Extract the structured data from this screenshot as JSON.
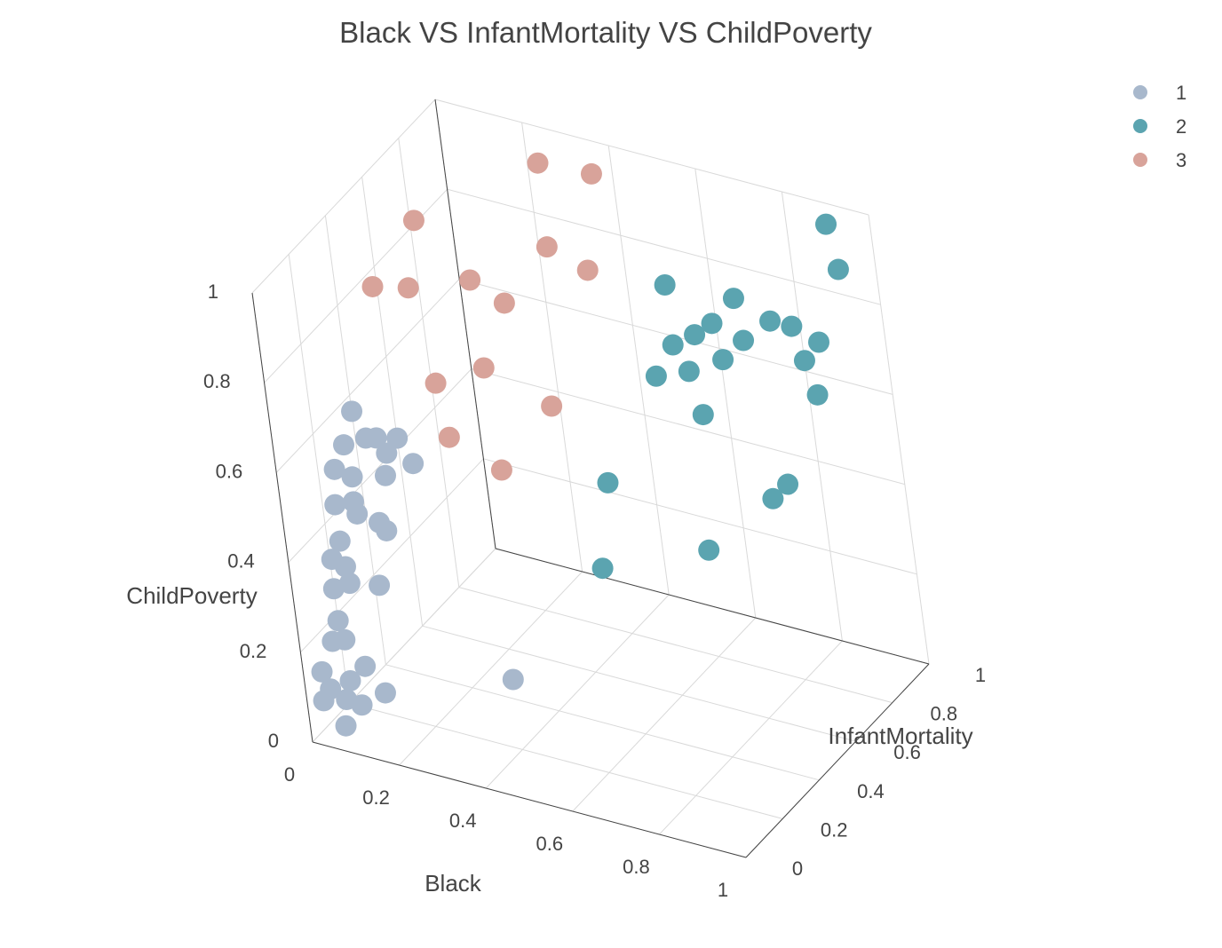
{
  "chart_data": {
    "type": "scatter",
    "title": "Black VS InfantMortality VS ChildPoverty",
    "xlabel": "Black",
    "ylabel": "InfantMortality",
    "zlabel": "ChildPoverty",
    "xlim": [
      0,
      1
    ],
    "ylim": [
      0,
      1
    ],
    "zlim": [
      0,
      1
    ],
    "x_ticks": [
      "0",
      "0.2",
      "0.4",
      "0.6",
      "0.8",
      "1"
    ],
    "y_ticks": [
      "0",
      "0.2",
      "0.4",
      "0.6",
      "0.8",
      "1"
    ],
    "z_ticks": [
      "0",
      "0.2",
      "0.4",
      "0.6",
      "0.8",
      "1"
    ],
    "grid": true,
    "legend_position": "top-right",
    "series": [
      {
        "name": "1",
        "color": "#a8b8cc",
        "points": [
          {
            "x": 0.05,
            "y": 0.3,
            "z": 0.62
          },
          {
            "x": 0.04,
            "y": 0.26,
            "z": 0.56
          },
          {
            "x": 0.03,
            "y": 0.22,
            "z": 0.52
          },
          {
            "x": 0.06,
            "y": 0.33,
            "z": 0.55
          },
          {
            "x": 0.07,
            "y": 0.36,
            "z": 0.54
          },
          {
            "x": 0.08,
            "y": 0.38,
            "z": 0.5
          },
          {
            "x": 0.1,
            "y": 0.4,
            "z": 0.53
          },
          {
            "x": 0.09,
            "y": 0.34,
            "z": 0.47
          },
          {
            "x": 0.12,
            "y": 0.42,
            "z": 0.47
          },
          {
            "x": 0.04,
            "y": 0.28,
            "z": 0.48
          },
          {
            "x": 0.05,
            "y": 0.25,
            "z": 0.44
          },
          {
            "x": 0.06,
            "y": 0.24,
            "z": 0.42
          },
          {
            "x": 0.03,
            "y": 0.2,
            "z": 0.45
          },
          {
            "x": 0.08,
            "y": 0.3,
            "z": 0.38
          },
          {
            "x": 0.09,
            "y": 0.31,
            "z": 0.36
          },
          {
            "x": 0.04,
            "y": 0.18,
            "z": 0.38
          },
          {
            "x": 0.03,
            "y": 0.15,
            "z": 0.35
          },
          {
            "x": 0.05,
            "y": 0.17,
            "z": 0.33
          },
          {
            "x": 0.06,
            "y": 0.16,
            "z": 0.3
          },
          {
            "x": 0.04,
            "y": 0.12,
            "z": 0.3
          },
          {
            "x": 0.1,
            "y": 0.22,
            "z": 0.28
          },
          {
            "x": 0.05,
            "y": 0.1,
            "z": 0.24
          },
          {
            "x": 0.04,
            "y": 0.08,
            "z": 0.2
          },
          {
            "x": 0.06,
            "y": 0.1,
            "z": 0.2
          },
          {
            "x": 0.02,
            "y": 0.05,
            "z": 0.14
          },
          {
            "x": 0.03,
            "y": 0.06,
            "z": 0.1
          },
          {
            "x": 0.02,
            "y": 0.04,
            "z": 0.08
          },
          {
            "x": 0.07,
            "y": 0.08,
            "z": 0.12
          },
          {
            "x": 0.09,
            "y": 0.12,
            "z": 0.14
          },
          {
            "x": 0.06,
            "y": 0.07,
            "z": 0.08
          },
          {
            "x": 0.08,
            "y": 0.1,
            "z": 0.06
          },
          {
            "x": 0.12,
            "y": 0.14,
            "z": 0.08
          },
          {
            "x": 0.06,
            "y": 0.05,
            "z": 0.03
          },
          {
            "x": 0.35,
            "y": 0.3,
            "z": 0.1
          }
        ]
      },
      {
        "name": "2",
        "color": "#5ba4b0",
        "points": [
          {
            "x": 0.92,
            "y": 0.95,
            "z": 0.98
          },
          {
            "x": 0.95,
            "y": 0.92,
            "z": 0.9
          },
          {
            "x": 0.55,
            "y": 0.88,
            "z": 0.78
          },
          {
            "x": 0.7,
            "y": 0.9,
            "z": 0.78
          },
          {
            "x": 0.78,
            "y": 0.9,
            "z": 0.75
          },
          {
            "x": 0.82,
            "y": 0.92,
            "z": 0.74
          },
          {
            "x": 0.88,
            "y": 0.92,
            "z": 0.72
          },
          {
            "x": 0.65,
            "y": 0.88,
            "z": 0.72
          },
          {
            "x": 0.62,
            "y": 0.85,
            "z": 0.7
          },
          {
            "x": 0.58,
            "y": 0.82,
            "z": 0.68
          },
          {
            "x": 0.72,
            "y": 0.88,
            "z": 0.7
          },
          {
            "x": 0.85,
            "y": 0.9,
            "z": 0.68
          },
          {
            "x": 0.68,
            "y": 0.85,
            "z": 0.66
          },
          {
            "x": 0.62,
            "y": 0.8,
            "z": 0.64
          },
          {
            "x": 0.55,
            "y": 0.78,
            "z": 0.62
          },
          {
            "x": 0.88,
            "y": 0.88,
            "z": 0.62
          },
          {
            "x": 0.65,
            "y": 0.78,
            "z": 0.56
          },
          {
            "x": 0.82,
            "y": 0.8,
            "z": 0.44
          },
          {
            "x": 0.8,
            "y": 0.76,
            "z": 0.42
          },
          {
            "x": 0.45,
            "y": 0.68,
            "z": 0.4
          },
          {
            "x": 0.7,
            "y": 0.62,
            "z": 0.34
          },
          {
            "x": 0.5,
            "y": 0.5,
            "z": 0.3
          }
        ]
      },
      {
        "name": "3",
        "color": "#d8a39a",
        "points": [
          {
            "x": 0.1,
            "y": 0.62,
            "z": 0.92
          },
          {
            "x": 0.3,
            "y": 0.85,
            "z": 1.0
          },
          {
            "x": 0.4,
            "y": 0.9,
            "z": 0.98
          },
          {
            "x": 0.05,
            "y": 0.48,
            "z": 0.82
          },
          {
            "x": 0.1,
            "y": 0.55,
            "z": 0.8
          },
          {
            "x": 0.2,
            "y": 0.65,
            "z": 0.8
          },
          {
            "x": 0.32,
            "y": 0.8,
            "z": 0.84
          },
          {
            "x": 0.4,
            "y": 0.82,
            "z": 0.8
          },
          {
            "x": 0.25,
            "y": 0.7,
            "z": 0.74
          },
          {
            "x": 0.12,
            "y": 0.58,
            "z": 0.58
          },
          {
            "x": 0.2,
            "y": 0.66,
            "z": 0.6
          },
          {
            "x": 0.15,
            "y": 0.55,
            "z": 0.48
          },
          {
            "x": 0.32,
            "y": 0.72,
            "z": 0.52
          },
          {
            "x": 0.25,
            "y": 0.58,
            "z": 0.42
          }
        ]
      }
    ]
  }
}
